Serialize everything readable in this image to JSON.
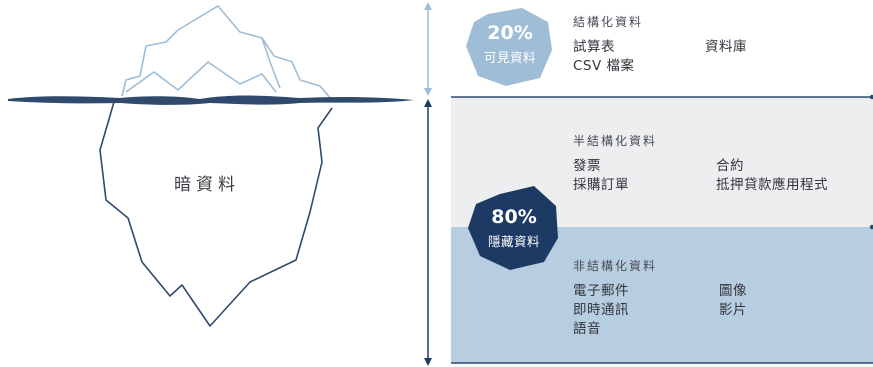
{
  "iceberg": {
    "label": "暗資料"
  },
  "visible": {
    "percent": "20%",
    "label": "可見資料",
    "header": "結構化資料",
    "items_col1": [
      "試算表",
      "CSV 檔案"
    ],
    "items_col2": [
      "資料庫"
    ]
  },
  "hidden": {
    "percent": "80%",
    "label": "隱藏資料"
  },
  "semi_structured": {
    "header": "半結構化資料",
    "items_col1": [
      "發票",
      "採購訂單"
    ],
    "items_col2": [
      "合約",
      "抵押貸款應用程式"
    ]
  },
  "unstructured": {
    "header": "非結構化資料",
    "items_col1": [
      "電子郵件",
      "即時通訊",
      "語音"
    ],
    "items_col2": [
      "圖像",
      "影片"
    ]
  },
  "colors": {
    "light_blue": "#9fbdd6",
    "dark_navy": "#1c3a63",
    "semi_band": "#eceef0",
    "unstructured_band": "#b7cde0",
    "iceberg_stroke": "#2f4a6d",
    "iceberg_tip_stroke": "#9fbdd6"
  }
}
